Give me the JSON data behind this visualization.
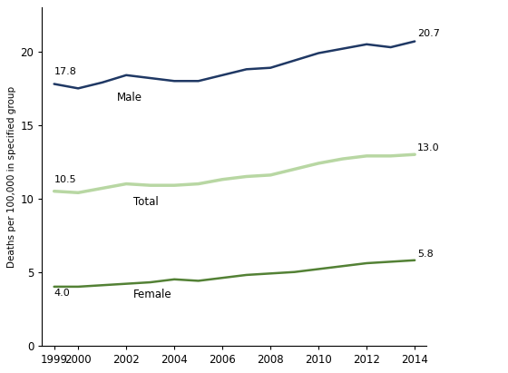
{
  "years": [
    1999,
    2000,
    2001,
    2002,
    2003,
    2004,
    2005,
    2006,
    2007,
    2008,
    2009,
    2010,
    2011,
    2012,
    2013,
    2014
  ],
  "male": [
    17.8,
    17.5,
    17.9,
    18.4,
    18.2,
    18.0,
    18.0,
    18.4,
    18.8,
    18.9,
    19.4,
    19.9,
    20.2,
    20.5,
    20.3,
    20.7
  ],
  "female": [
    4.0,
    4.0,
    4.1,
    4.2,
    4.3,
    4.5,
    4.4,
    4.6,
    4.8,
    4.9,
    5.0,
    5.2,
    5.4,
    5.6,
    5.7,
    5.8
  ],
  "total": [
    10.5,
    10.4,
    10.7,
    11.0,
    10.9,
    10.9,
    11.0,
    11.3,
    11.5,
    11.6,
    12.0,
    12.4,
    12.7,
    12.9,
    12.9,
    13.0
  ],
  "male_color": "#1f3864",
  "female_color": "#538135",
  "total_color": "#b8d7a3",
  "male_start_label": "17.8",
  "male_end_label": "20.7",
  "female_start_label": "4.0",
  "female_end_label": "5.8",
  "total_start_label": "10.5",
  "total_end_label": "13.0",
  "male_line_label": "Male",
  "female_line_label": "Female",
  "total_line_label": "Total",
  "ylabel": "Deaths per 100,000 in specified group",
  "xlim": [
    1998.5,
    2014.5
  ],
  "ylim": [
    0,
    23
  ],
  "yticks": [
    0,
    5,
    10,
    15,
    20
  ],
  "ytick_labels": [
    "0",
    "5",
    "10",
    "15",
    "20"
  ],
  "xticks": [
    1999,
    2000,
    2002,
    2004,
    2006,
    2008,
    2010,
    2012,
    2014
  ],
  "male_linewidth": 1.8,
  "female_linewidth": 1.8,
  "total_linewidth": 2.5
}
